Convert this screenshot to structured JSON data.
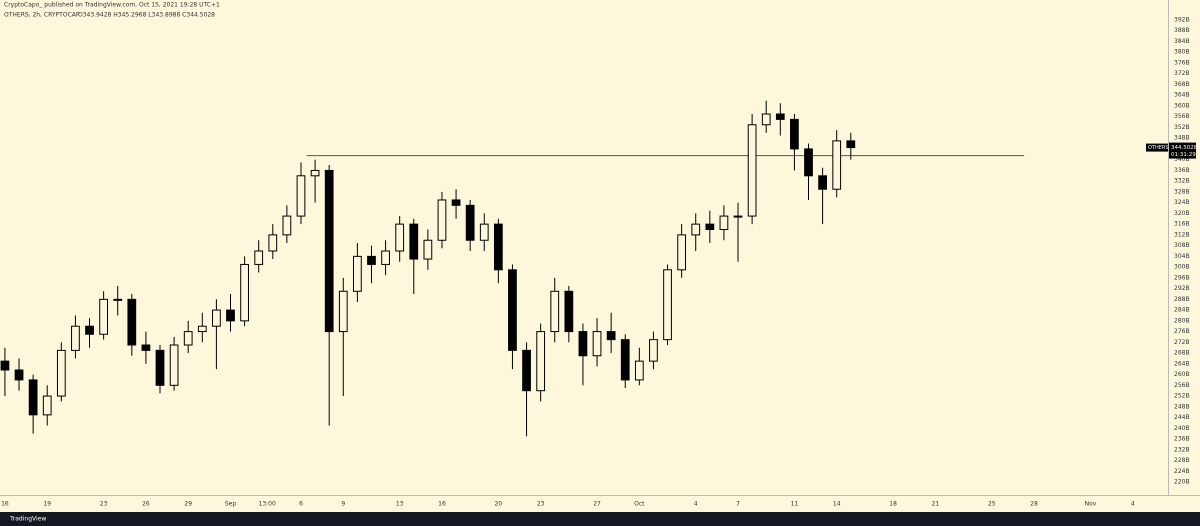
{
  "header": {
    "publisher": "CryptoCapo_ published on TradingView.com, Oct 15, 2021 19:28 UTC+1"
  },
  "footer": {
    "brand": "TradingView"
  },
  "chart_data": {
    "type": "candlestick",
    "symbol_line": "OTHERS, 2h, CRYPTOCAP",
    "ohlc_line": "O343.9428 H345.2968 L343.8988 C344.5028",
    "price_label": {
      "symbol": "OTHERS",
      "price": 344.5028,
      "countdown": "01:31:29"
    },
    "x": [
      1,
      2,
      3,
      4,
      5,
      6,
      7,
      8,
      9,
      10,
      11,
      12,
      13,
      14,
      15,
      16,
      17,
      18,
      19,
      20,
      21,
      22,
      23,
      24,
      25,
      26,
      27,
      28,
      29,
      30,
      31,
      32,
      33,
      34,
      35,
      36,
      37,
      38,
      39,
      40,
      41,
      42,
      43,
      44,
      45,
      46,
      47,
      48,
      49,
      50,
      51,
      52,
      53,
      54,
      55,
      56,
      57,
      58,
      59,
      60,
      61
    ],
    "open": [
      265,
      261.7,
      258,
      245,
      252,
      269,
      278,
      275,
      288,
      288,
      271,
      269,
      256,
      271,
      276,
      278,
      284,
      280,
      301,
      306,
      312,
      319,
      334,
      336,
      276,
      291,
      304,
      301,
      306,
      316,
      303,
      310,
      325,
      323,
      310,
      316,
      299,
      269,
      254,
      276,
      291,
      276,
      267,
      276,
      273,
      258,
      265,
      273,
      299,
      312,
      316,
      314,
      319,
      319,
      353,
      357,
      355,
      344,
      334,
      329,
      347
    ],
    "high": [
      270,
      266,
      260,
      256,
      272,
      282,
      281,
      291,
      293,
      290,
      276,
      271,
      274,
      280,
      283,
      288,
      290,
      304,
      310,
      316,
      323,
      339,
      340,
      338,
      296,
      309,
      308,
      310,
      319,
      318,
      314,
      328,
      329,
      325,
      320,
      318,
      301,
      272,
      279,
      296,
      293,
      279,
      281,
      283,
      275,
      270,
      276,
      301,
      316,
      320,
      321,
      323,
      324,
      357,
      362,
      361,
      357,
      346,
      337,
      351,
      350
    ],
    "low": [
      252,
      254,
      238,
      241,
      250,
      266,
      270,
      273,
      282,
      267,
      264,
      253,
      254,
      268,
      272,
      262,
      276,
      278,
      298,
      303,
      309,
      316,
      324,
      241,
      252,
      287,
      294,
      297,
      302,
      290,
      299,
      307,
      318,
      306,
      306,
      294,
      262,
      237,
      250,
      272,
      272,
      256,
      263,
      268,
      255,
      256,
      262,
      271,
      296,
      306,
      309,
      310,
      302,
      316,
      350,
      349,
      336,
      325,
      316,
      326,
      340
    ],
    "close": [
      261.7,
      258,
      245,
      252,
      269,
      278,
      275,
      288,
      288,
      271,
      269,
      256,
      271,
      276,
      278,
      284,
      280,
      301,
      306,
      312,
      319,
      334,
      336,
      276,
      291,
      304,
      301,
      306,
      316,
      303,
      310,
      325,
      323,
      310,
      316,
      299,
      269,
      254,
      276,
      291,
      276,
      267,
      276,
      273,
      258,
      265,
      273,
      299,
      312,
      316,
      314,
      319,
      319,
      353,
      357,
      355,
      344,
      334,
      329,
      347,
      344.5
    ],
    "up_color": "#fdf8dc",
    "down_color": "#000000",
    "xlim": [
      0.65,
      83.5
    ],
    "xticks": [
      {
        "value": 1,
        "label": "16"
      },
      {
        "value": 4,
        "label": "19"
      },
      {
        "value": 8,
        "label": "23"
      },
      {
        "value": 11,
        "label": "26"
      },
      {
        "value": 14,
        "label": "29"
      },
      {
        "value": 17,
        "label": "Sep"
      },
      {
        "value": 19.6,
        "label": "13:00"
      },
      {
        "value": 22,
        "label": "6"
      },
      {
        "value": 25,
        "label": "9"
      },
      {
        "value": 29,
        "label": "13"
      },
      {
        "value": 32,
        "label": "16"
      },
      {
        "value": 36,
        "label": "20"
      },
      {
        "value": 39,
        "label": "23"
      },
      {
        "value": 43,
        "label": "27"
      },
      {
        "value": 46,
        "label": "Oct"
      },
      {
        "value": 50,
        "label": "4"
      },
      {
        "value": 53,
        "label": "7"
      },
      {
        "value": 57,
        "label": "11"
      },
      {
        "value": 60,
        "label": "14"
      },
      {
        "value": 64,
        "label": "18"
      },
      {
        "value": 67,
        "label": "21"
      },
      {
        "value": 71,
        "label": "25"
      },
      {
        "value": 74,
        "label": "28"
      },
      {
        "value": 78,
        "label": "Nov"
      },
      {
        "value": 81,
        "label": "4"
      }
    ],
    "ylim": [
      220,
      392
    ],
    "yticks": [
      {
        "value": 220,
        "label": "220B"
      },
      {
        "value": 224,
        "label": "224B"
      },
      {
        "value": 228,
        "label": "228B"
      },
      {
        "value": 232,
        "label": "232B"
      },
      {
        "value": 236,
        "label": "236B"
      },
      {
        "value": 240,
        "label": "240B"
      },
      {
        "value": 244,
        "label": "244B"
      },
      {
        "value": 248,
        "label": "248B"
      },
      {
        "value": 252,
        "label": "252B"
      },
      {
        "value": 256,
        "label": "256B"
      },
      {
        "value": 260,
        "label": "260B"
      },
      {
        "value": 264,
        "label": "264B"
      },
      {
        "value": 268,
        "label": "268B"
      },
      {
        "value": 272,
        "label": "272B"
      },
      {
        "value": 276,
        "label": "276B"
      },
      {
        "value": 280,
        "label": "280B"
      },
      {
        "value": 284,
        "label": "284B"
      },
      {
        "value": 288,
        "label": "288B"
      },
      {
        "value": 292,
        "label": "292B"
      },
      {
        "value": 296,
        "label": "296B"
      },
      {
        "value": 300,
        "label": "300B"
      },
      {
        "value": 304,
        "label": "304B"
      },
      {
        "value": 308,
        "label": "308B"
      },
      {
        "value": 312,
        "label": "312B"
      },
      {
        "value": 316,
        "label": "316B"
      },
      {
        "value": 320,
        "label": "320B"
      },
      {
        "value": 324,
        "label": "324B"
      },
      {
        "value": 328,
        "label": "328B"
      },
      {
        "value": 332,
        "label": "332B"
      },
      {
        "value": 336,
        "label": "336B"
      },
      {
        "value": 340,
        "label": "340B"
      },
      {
        "value": 348,
        "label": "348B"
      },
      {
        "value": 352,
        "label": "352B"
      },
      {
        "value": 356,
        "label": "356B"
      },
      {
        "value": 360,
        "label": "360B"
      },
      {
        "value": 364,
        "label": "364B"
      },
      {
        "value": 368,
        "label": "368B"
      },
      {
        "value": 372,
        "label": "372B"
      },
      {
        "value": 376,
        "label": "376B"
      },
      {
        "value": 380,
        "label": "380B"
      },
      {
        "value": 384,
        "label": "384B"
      },
      {
        "value": 388,
        "label": "388B"
      },
      {
        "value": 392,
        "label": "392B"
      }
    ],
    "hline": {
      "value": 341.5,
      "x": [
        22.4,
        73.3
      ],
      "color": "#555555"
    },
    "grid": false
  }
}
